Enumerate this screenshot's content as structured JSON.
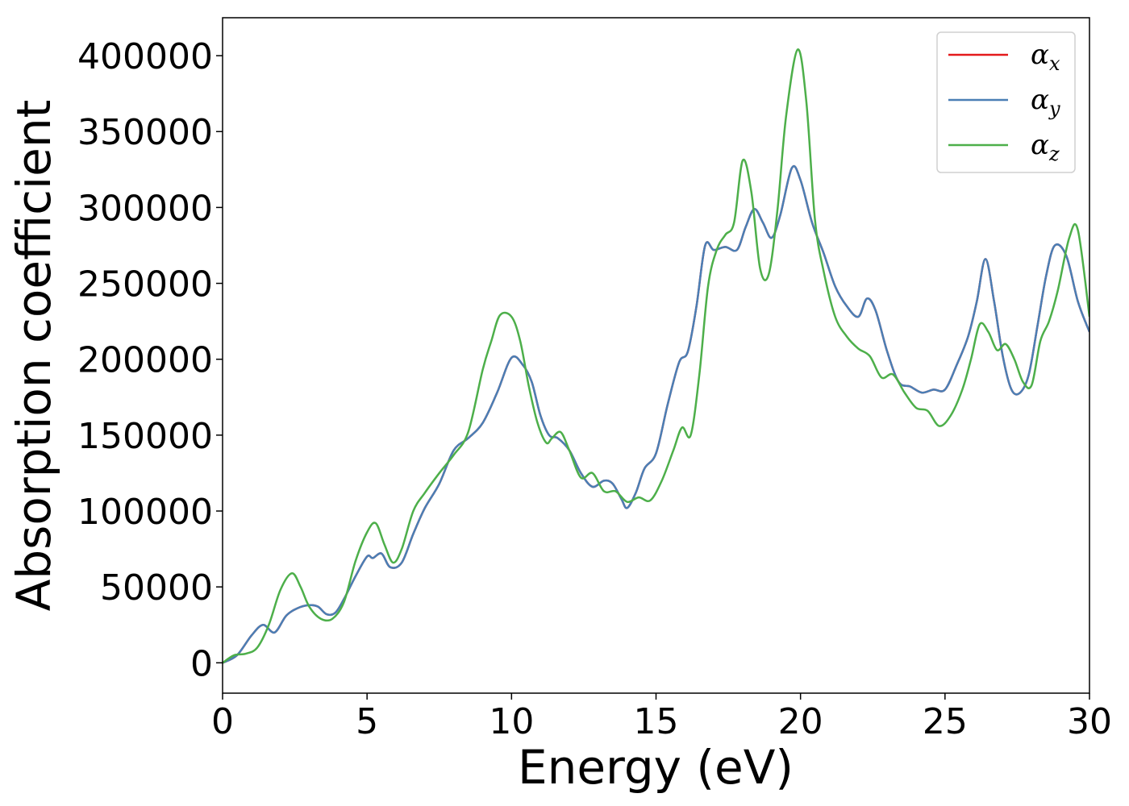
{
  "chart_data": {
    "type": "line",
    "xlabel": "Energy (eV)",
    "ylabel": "Absorption coefficient",
    "xlim": [
      0,
      30
    ],
    "ylim": [
      -20000,
      425000
    ],
    "xticks": [
      0,
      5,
      10,
      15,
      20,
      25,
      30
    ],
    "yticks": [
      0,
      50000,
      100000,
      150000,
      200000,
      250000,
      300000,
      350000,
      400000
    ],
    "grid": false,
    "legend_position": "top-right",
    "series": [
      {
        "name": "α_x",
        "symbol": "α",
        "subscript": "x",
        "color": "#e41a1c",
        "x": [
          0,
          0.5,
          1.0,
          1.4,
          1.8,
          2.2,
          2.6,
          3.0,
          3.3,
          3.6,
          3.9,
          4.2,
          4.6,
          5.0,
          5.2,
          5.5,
          5.8,
          6.2,
          6.6,
          7.0,
          7.5,
          8.0,
          8.5,
          9.0,
          9.5,
          10.0,
          10.4,
          10.7,
          11.0,
          11.3,
          11.6,
          12.0,
          12.4,
          12.8,
          13.2,
          13.5,
          13.8,
          14.0,
          14.3,
          14.6,
          15.0,
          15.4,
          15.8,
          16.1,
          16.4,
          16.7,
          17.0,
          17.4,
          17.8,
          18.1,
          18.4,
          18.7,
          19.0,
          19.3,
          19.7,
          20.0,
          20.4,
          20.8,
          21.2,
          21.6,
          22.0,
          22.3,
          22.6,
          23.0,
          23.4,
          23.8,
          24.2,
          24.6,
          25.0,
          25.4,
          25.8,
          26.1,
          26.4,
          26.7,
          27.0,
          27.3,
          27.6,
          27.9,
          28.2,
          28.5,
          28.8,
          29.2,
          29.6,
          30.0
        ],
        "y": [
          0,
          5000,
          18000,
          25000,
          20000,
          31000,
          36000,
          38000,
          37000,
          32000,
          33000,
          42000,
          57000,
          70000,
          69000,
          72000,
          63000,
          66000,
          85000,
          102000,
          118000,
          140000,
          148000,
          158000,
          178000,
          201000,
          196000,
          185000,
          163000,
          150000,
          148000,
          140000,
          125000,
          116000,
          120000,
          118000,
          108000,
          102000,
          112000,
          128000,
          138000,
          170000,
          198000,
          205000,
          235000,
          275000,
          272000,
          274000,
          272000,
          287000,
          299000,
          290000,
          280000,
          295000,
          326000,
          318000,
          290000,
          270000,
          248000,
          235000,
          228000,
          240000,
          232000,
          205000,
          185000,
          182000,
          178000,
          180000,
          180000,
          196000,
          215000,
          238000,
          266000,
          238000,
          202000,
          180000,
          178000,
          190000,
          222000,
          255000,
          275000,
          268000,
          238000,
          218000
        ]
      },
      {
        "name": "α_y",
        "symbol": "α",
        "subscript": "y",
        "color": "#4a7fb5",
        "x": [
          0,
          0.5,
          1.0,
          1.4,
          1.8,
          2.2,
          2.6,
          3.0,
          3.3,
          3.6,
          3.9,
          4.2,
          4.6,
          5.0,
          5.2,
          5.5,
          5.8,
          6.2,
          6.6,
          7.0,
          7.5,
          8.0,
          8.5,
          9.0,
          9.5,
          10.0,
          10.4,
          10.7,
          11.0,
          11.3,
          11.6,
          12.0,
          12.4,
          12.8,
          13.2,
          13.5,
          13.8,
          14.0,
          14.3,
          14.6,
          15.0,
          15.4,
          15.8,
          16.1,
          16.4,
          16.7,
          17.0,
          17.4,
          17.8,
          18.1,
          18.4,
          18.7,
          19.0,
          19.3,
          19.7,
          20.0,
          20.4,
          20.8,
          21.2,
          21.6,
          22.0,
          22.3,
          22.6,
          23.0,
          23.4,
          23.8,
          24.2,
          24.6,
          25.0,
          25.4,
          25.8,
          26.1,
          26.4,
          26.7,
          27.0,
          27.3,
          27.6,
          27.9,
          28.2,
          28.5,
          28.8,
          29.2,
          29.6,
          30.0
        ],
        "y": [
          0,
          5000,
          18000,
          25000,
          20000,
          31000,
          36000,
          38000,
          37000,
          32000,
          33000,
          42000,
          57000,
          70000,
          69000,
          72000,
          63000,
          66000,
          85000,
          102000,
          118000,
          140000,
          148000,
          158000,
          178000,
          201000,
          196000,
          185000,
          163000,
          150000,
          148000,
          140000,
          125000,
          116000,
          120000,
          118000,
          108000,
          102000,
          112000,
          128000,
          138000,
          170000,
          198000,
          205000,
          235000,
          275000,
          272000,
          274000,
          272000,
          287000,
          299000,
          290000,
          280000,
          295000,
          326000,
          318000,
          290000,
          270000,
          248000,
          235000,
          228000,
          240000,
          232000,
          205000,
          185000,
          182000,
          178000,
          180000,
          180000,
          196000,
          215000,
          238000,
          266000,
          238000,
          202000,
          180000,
          178000,
          190000,
          222000,
          255000,
          275000,
          268000,
          238000,
          218000
        ]
      },
      {
        "name": "α_z",
        "symbol": "α",
        "subscript": "z",
        "color": "#4daf4a",
        "x": [
          0,
          0.4,
          0.8,
          1.2,
          1.6,
          2.0,
          2.4,
          2.7,
          3.0,
          3.4,
          3.8,
          4.2,
          4.6,
          5.0,
          5.3,
          5.6,
          5.9,
          6.2,
          6.6,
          7.0,
          7.5,
          8.0,
          8.5,
          9.0,
          9.3,
          9.6,
          10.0,
          10.3,
          10.6,
          10.9,
          11.2,
          11.4,
          11.7,
          12.0,
          12.4,
          12.8,
          13.2,
          13.6,
          14.0,
          14.4,
          14.8,
          15.2,
          15.6,
          15.9,
          16.2,
          16.5,
          16.8,
          17.1,
          17.4,
          17.7,
          18.0,
          18.3,
          18.6,
          18.9,
          19.2,
          19.5,
          19.9,
          20.2,
          20.5,
          20.8,
          21.2,
          21.6,
          22.0,
          22.4,
          22.8,
          23.2,
          23.6,
          24.0,
          24.4,
          24.8,
          25.2,
          25.6,
          25.9,
          26.2,
          26.5,
          26.8,
          27.1,
          27.4,
          27.7,
          28.0,
          28.3,
          28.6,
          28.9,
          29.3,
          29.6,
          30.0
        ],
        "y": [
          0,
          5000,
          6000,
          10000,
          25000,
          48000,
          59000,
          50000,
          37000,
          29000,
          29000,
          40000,
          67000,
          86000,
          92000,
          78000,
          66000,
          75000,
          100000,
          112000,
          125000,
          137000,
          152000,
          193000,
          212000,
          229000,
          228000,
          212000,
          182000,
          158000,
          145000,
          148000,
          152000,
          140000,
          122000,
          125000,
          113000,
          113000,
          106000,
          109000,
          107000,
          120000,
          140000,
          155000,
          150000,
          190000,
          248000,
          272000,
          282000,
          290000,
          331000,
          310000,
          260000,
          256000,
          298000,
          360000,
          404000,
          370000,
          292000,
          258000,
          228000,
          215000,
          207000,
          202000,
          188000,
          190000,
          178000,
          168000,
          166000,
          156000,
          163000,
          180000,
          200000,
          223000,
          218000,
          206000,
          210000,
          200000,
          185000,
          183000,
          212000,
          225000,
          245000,
          280000,
          285000,
          228000
        ]
      }
    ]
  }
}
